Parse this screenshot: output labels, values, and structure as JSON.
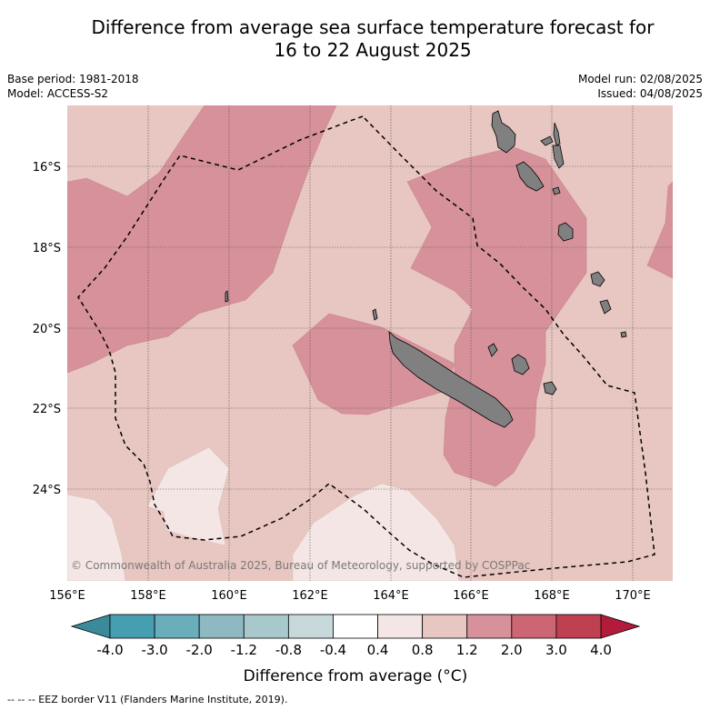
{
  "title_line1": "Difference from average sea surface temperature forecast for",
  "title_line2": "16 to 22 August 2025",
  "base_period": "Base period: 1981-2018",
  "model": "Model: ACCESS-S2",
  "model_run": "Model run: 02/08/2025",
  "issued": "Issued: 04/08/2025",
  "copyright": "© Commonwealth of Australia 2025, Bureau of Meteorology, supported by COSPPac",
  "lat_labels": [
    "16°S",
    "18°S",
    "20°S",
    "22°S",
    "24°S"
  ],
  "lon_labels": [
    "156°E",
    "158°E",
    "160°E",
    "162°E",
    "164°E",
    "166°E",
    "168°E",
    "170°E"
  ],
  "colorbar": {
    "title": "Difference from average (°C)",
    "ticks": [
      "-4.0",
      "-3.0",
      "-2.0",
      "-1.2",
      "-0.8",
      "-0.4",
      "0.4",
      "0.8",
      "1.2",
      "2.0",
      "3.0",
      "4.0"
    ],
    "colors": [
      "#469fb0",
      "#6aaebc",
      "#8eb9c3",
      "#a9c8cc",
      "#c7d9da",
      "#ffffff",
      "#f4e6e4",
      "#e8c6c1",
      "#d6919a",
      "#cc6674",
      "#bf4050"
    ],
    "under_color": "#3a8a9a",
    "over_color": "#b31b3a"
  },
  "colors": {
    "land": "#808080",
    "band_0_4_0_8": "#f4e6e4",
    "band_0_8_1_2": "#e8c6c1",
    "band_1_2_2_0": "#d6919a"
  },
  "footnote": "--  --  -- EEZ border V11 (Flanders Marine Institute, 2019)."
}
